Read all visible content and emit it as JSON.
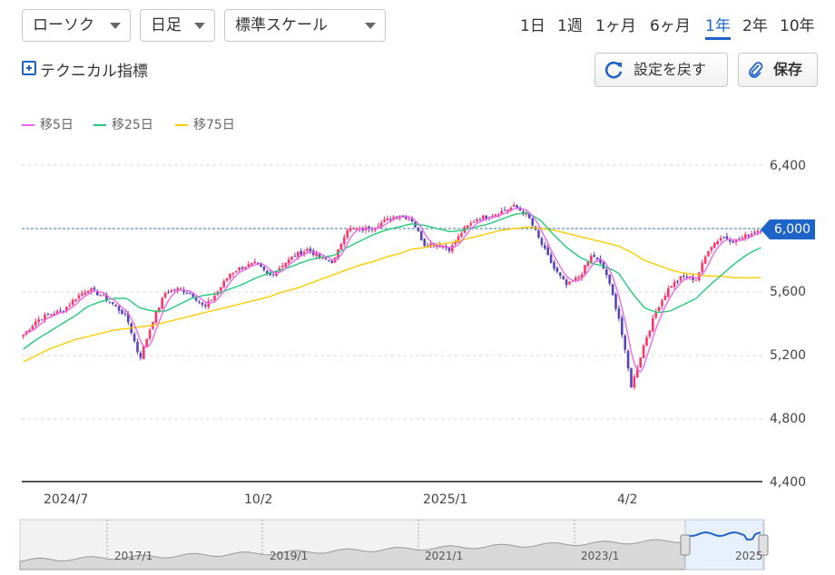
{
  "toolbar": {
    "chart_type": "ローソク",
    "interval": "日足",
    "scale": "標準スケール",
    "periods": [
      "1日",
      "1週",
      "1ヶ月",
      "6ヶ月",
      "1年",
      "2年",
      "10年"
    ],
    "active_period": "1年",
    "technical_label": "テクニカル指標",
    "reset_label": "設定を戻す",
    "save_label": "保存"
  },
  "colors": {
    "up": "#ff3366",
    "down": "#5544bb",
    "ma5": "#ee66ee",
    "ma25": "#22cc77",
    "ma75": "#ffcc00",
    "accent": "#1e64c8",
    "current_line": "#3a7ca5"
  },
  "chart_data": {
    "type": "candlestick",
    "ylim": [
      4400,
      6600
    ],
    "yticks": [
      "6,400",
      "6,000",
      "5,600",
      "5,200",
      "4,800",
      "4,400"
    ],
    "ytick_values": [
      6400,
      6000,
      5600,
      5200,
      4800,
      4400
    ],
    "xticks": [
      "2024/7",
      "10/2",
      "2025/1",
      "4/2"
    ],
    "current_price_label": "6,000",
    "current_price": 6000,
    "grid": true,
    "legend_position": "top-left",
    "legend": [
      {
        "label": "移5日",
        "color_key": "ma5"
      },
      {
        "label": "移25日",
        "color_key": "ma25"
      },
      {
        "label": "移75日",
        "color_key": "ma75"
      }
    ],
    "closes_weekly": [
      5330,
      5420,
      5460,
      5480,
      5560,
      5620,
      5580,
      5520,
      5440,
      5180,
      5420,
      5600,
      5620,
      5590,
      5500,
      5600,
      5720,
      5760,
      5780,
      5700,
      5770,
      5830,
      5870,
      5810,
      5790,
      6000,
      5990,
      6010,
      6050,
      6090,
      6060,
      5900,
      5900,
      5870,
      5990,
      6060,
      6080,
      6110,
      6140,
      6080,
      5910,
      5750,
      5640,
      5700,
      5840,
      5730,
      5450,
      5000,
      5280,
      5500,
      5640,
      5700,
      5680,
      5880,
      5950,
      5920,
      5960,
      6000
    ],
    "ma25_weekly": [
      5240,
      5300,
      5350,
      5400,
      5450,
      5510,
      5540,
      5560,
      5560,
      5500,
      5480,
      5480,
      5520,
      5560,
      5580,
      5590,
      5620,
      5650,
      5690,
      5720,
      5740,
      5770,
      5800,
      5820,
      5830,
      5880,
      5920,
      5960,
      5990,
      6010,
      6030,
      6020,
      6000,
      5980,
      5990,
      6010,
      6030,
      6060,
      6090,
      6100,
      6050,
      5960,
      5880,
      5820,
      5780,
      5760,
      5720,
      5600,
      5500,
      5470,
      5480,
      5520,
      5560,
      5640,
      5710,
      5780,
      5840,
      5880
    ],
    "ma75_weekly": [
      5160,
      5200,
      5240,
      5270,
      5300,
      5320,
      5340,
      5360,
      5370,
      5380,
      5390,
      5410,
      5430,
      5450,
      5470,
      5490,
      5510,
      5530,
      5550,
      5570,
      5600,
      5620,
      5650,
      5680,
      5710,
      5740,
      5770,
      5790,
      5820,
      5840,
      5870,
      5880,
      5900,
      5910,
      5930,
      5950,
      5970,
      5990,
      6000,
      6010,
      6000,
      5990,
      5970,
      5950,
      5930,
      5910,
      5890,
      5850,
      5800,
      5770,
      5740,
      5720,
      5710,
      5700,
      5700,
      5690,
      5690,
      5690
    ]
  },
  "navigator": {
    "labels": [
      "2017/1",
      "2019/1",
      "2021/1",
      "2023/1",
      "2025"
    ]
  }
}
